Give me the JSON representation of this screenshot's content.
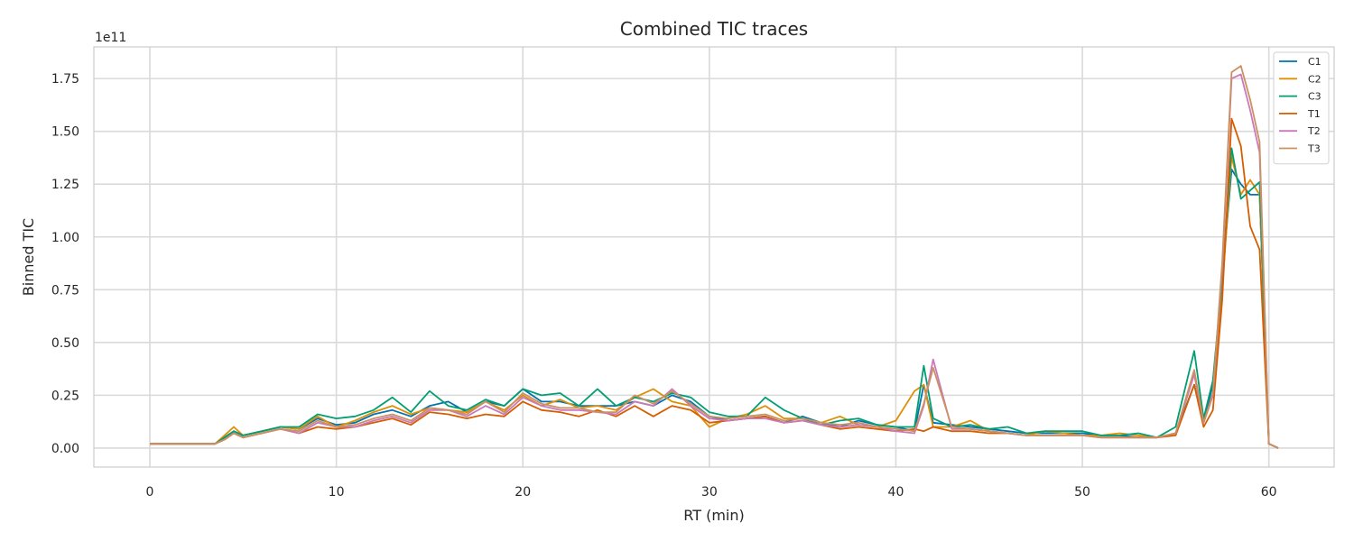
{
  "chart_data": {
    "type": "line",
    "title": "Combined TIC traces",
    "xlabel": "RT (min)",
    "ylabel": "Binned TIC",
    "offset_label": "1e11",
    "xlim": [
      -3,
      63.5
    ],
    "ylim": [
      -0.09,
      1.9
    ],
    "xticks": [
      0,
      10,
      20,
      30,
      40,
      50,
      60
    ],
    "yticks": [
      0,
      0.25,
      0.5,
      0.75,
      1.0,
      1.25,
      1.5,
      1.75
    ],
    "ytick_labels": [
      "0.00",
      "0.25",
      "0.50",
      "0.75",
      "1.00",
      "1.25",
      "1.50",
      "1.75"
    ],
    "y_unit_multiplier": "1e11",
    "grid": true,
    "legend_position": "upper right",
    "x": [
      0,
      3.5,
      4,
      4.5,
      5,
      6,
      7,
      8,
      9,
      10,
      11,
      12,
      13,
      14,
      15,
      16,
      17,
      18,
      19,
      20,
      21,
      22,
      23,
      24,
      25,
      26,
      27,
      28,
      29,
      30,
      31,
      32,
      33,
      34,
      35,
      36,
      37,
      38,
      39,
      40,
      41,
      41.5,
      42,
      43,
      44,
      45,
      46,
      47,
      48,
      49,
      50,
      51,
      52,
      53,
      54,
      55,
      56,
      56.5,
      57,
      57.5,
      58,
      58.5,
      59,
      59.5,
      60,
      60.5
    ],
    "series": [
      {
        "name": "C1",
        "color": "#0173b2",
        "values": [
          0.02,
          0.02,
          0.05,
          0.08,
          0.06,
          0.08,
          0.1,
          0.09,
          0.14,
          0.11,
          0.12,
          0.16,
          0.18,
          0.15,
          0.2,
          0.22,
          0.17,
          0.22,
          0.2,
          0.28,
          0.22,
          0.22,
          0.2,
          0.2,
          0.2,
          0.22,
          0.2,
          0.25,
          0.22,
          0.15,
          0.13,
          0.14,
          0.15,
          0.12,
          0.15,
          0.12,
          0.1,
          0.13,
          0.11,
          0.1,
          0.08,
          0.3,
          0.12,
          0.11,
          0.1,
          0.09,
          0.08,
          0.07,
          0.07,
          0.07,
          0.07,
          0.06,
          0.06,
          0.05,
          0.05,
          0.07,
          0.3,
          0.12,
          0.3,
          0.8,
          1.32,
          1.25,
          1.2,
          1.2,
          0.02,
          0.0
        ]
      },
      {
        "name": "C2",
        "color": "#de8f05",
        "values": [
          0.02,
          0.02,
          0.06,
          0.1,
          0.06,
          0.08,
          0.1,
          0.09,
          0.15,
          0.1,
          0.13,
          0.17,
          0.2,
          0.16,
          0.19,
          0.18,
          0.17,
          0.22,
          0.18,
          0.25,
          0.2,
          0.23,
          0.19,
          0.2,
          0.18,
          0.24,
          0.28,
          0.22,
          0.2,
          0.1,
          0.14,
          0.16,
          0.2,
          0.14,
          0.14,
          0.12,
          0.15,
          0.11,
          0.1,
          0.13,
          0.27,
          0.3,
          0.1,
          0.1,
          0.13,
          0.08,
          0.07,
          0.06,
          0.08,
          0.07,
          0.06,
          0.06,
          0.07,
          0.06,
          0.05,
          0.07,
          0.35,
          0.12,
          0.25,
          0.75,
          1.38,
          1.2,
          1.27,
          1.2,
          0.02,
          0.0
        ]
      },
      {
        "name": "C3",
        "color": "#029e73",
        "values": [
          0.02,
          0.02,
          0.05,
          0.08,
          0.06,
          0.08,
          0.1,
          0.1,
          0.16,
          0.14,
          0.15,
          0.18,
          0.24,
          0.17,
          0.27,
          0.2,
          0.18,
          0.23,
          0.2,
          0.28,
          0.25,
          0.26,
          0.2,
          0.28,
          0.2,
          0.24,
          0.22,
          0.26,
          0.24,
          0.17,
          0.15,
          0.15,
          0.24,
          0.18,
          0.14,
          0.11,
          0.13,
          0.14,
          0.11,
          0.1,
          0.1,
          0.39,
          0.14,
          0.1,
          0.11,
          0.09,
          0.1,
          0.07,
          0.08,
          0.08,
          0.08,
          0.06,
          0.06,
          0.07,
          0.05,
          0.1,
          0.46,
          0.14,
          0.32,
          0.8,
          1.42,
          1.18,
          1.22,
          1.26,
          0.02,
          0.0
        ]
      },
      {
        "name": "T1",
        "color": "#d55e00",
        "values": [
          0.02,
          0.02,
          0.04,
          0.07,
          0.05,
          0.07,
          0.09,
          0.07,
          0.1,
          0.09,
          0.1,
          0.12,
          0.14,
          0.11,
          0.17,
          0.16,
          0.14,
          0.16,
          0.15,
          0.22,
          0.18,
          0.17,
          0.15,
          0.18,
          0.15,
          0.2,
          0.15,
          0.2,
          0.18,
          0.12,
          0.13,
          0.14,
          0.15,
          0.12,
          0.13,
          0.11,
          0.09,
          0.1,
          0.09,
          0.08,
          0.09,
          0.08,
          0.1,
          0.08,
          0.08,
          0.07,
          0.07,
          0.06,
          0.06,
          0.06,
          0.06,
          0.05,
          0.05,
          0.05,
          0.05,
          0.06,
          0.3,
          0.1,
          0.18,
          0.7,
          1.56,
          1.43,
          1.05,
          0.94,
          0.02,
          0.0
        ]
      },
      {
        "name": "T2",
        "color": "#cc78bc",
        "values": [
          0.02,
          0.02,
          0.04,
          0.07,
          0.05,
          0.07,
          0.09,
          0.07,
          0.12,
          0.1,
          0.1,
          0.13,
          0.15,
          0.12,
          0.18,
          0.18,
          0.15,
          0.2,
          0.16,
          0.24,
          0.2,
          0.18,
          0.18,
          0.17,
          0.16,
          0.22,
          0.2,
          0.28,
          0.2,
          0.14,
          0.13,
          0.14,
          0.14,
          0.12,
          0.13,
          0.11,
          0.1,
          0.11,
          0.1,
          0.08,
          0.07,
          0.2,
          0.42,
          0.09,
          0.09,
          0.08,
          0.07,
          0.06,
          0.06,
          0.06,
          0.06,
          0.05,
          0.05,
          0.05,
          0.05,
          0.07,
          0.35,
          0.12,
          0.25,
          0.85,
          1.75,
          1.77,
          1.6,
          1.4,
          0.02,
          0.0
        ]
      },
      {
        "name": "T3",
        "color": "#ca9161",
        "values": [
          0.02,
          0.02,
          0.04,
          0.07,
          0.05,
          0.07,
          0.09,
          0.08,
          0.13,
          0.1,
          0.11,
          0.14,
          0.16,
          0.13,
          0.19,
          0.18,
          0.16,
          0.22,
          0.17,
          0.26,
          0.21,
          0.19,
          0.19,
          0.17,
          0.17,
          0.25,
          0.21,
          0.27,
          0.21,
          0.15,
          0.14,
          0.15,
          0.16,
          0.13,
          0.14,
          0.12,
          0.11,
          0.12,
          0.1,
          0.09,
          0.08,
          0.21,
          0.38,
          0.1,
          0.09,
          0.08,
          0.07,
          0.06,
          0.06,
          0.06,
          0.06,
          0.05,
          0.05,
          0.05,
          0.05,
          0.07,
          0.37,
          0.12,
          0.26,
          0.88,
          1.78,
          1.81,
          1.65,
          1.45,
          0.02,
          0.0
        ]
      }
    ]
  }
}
